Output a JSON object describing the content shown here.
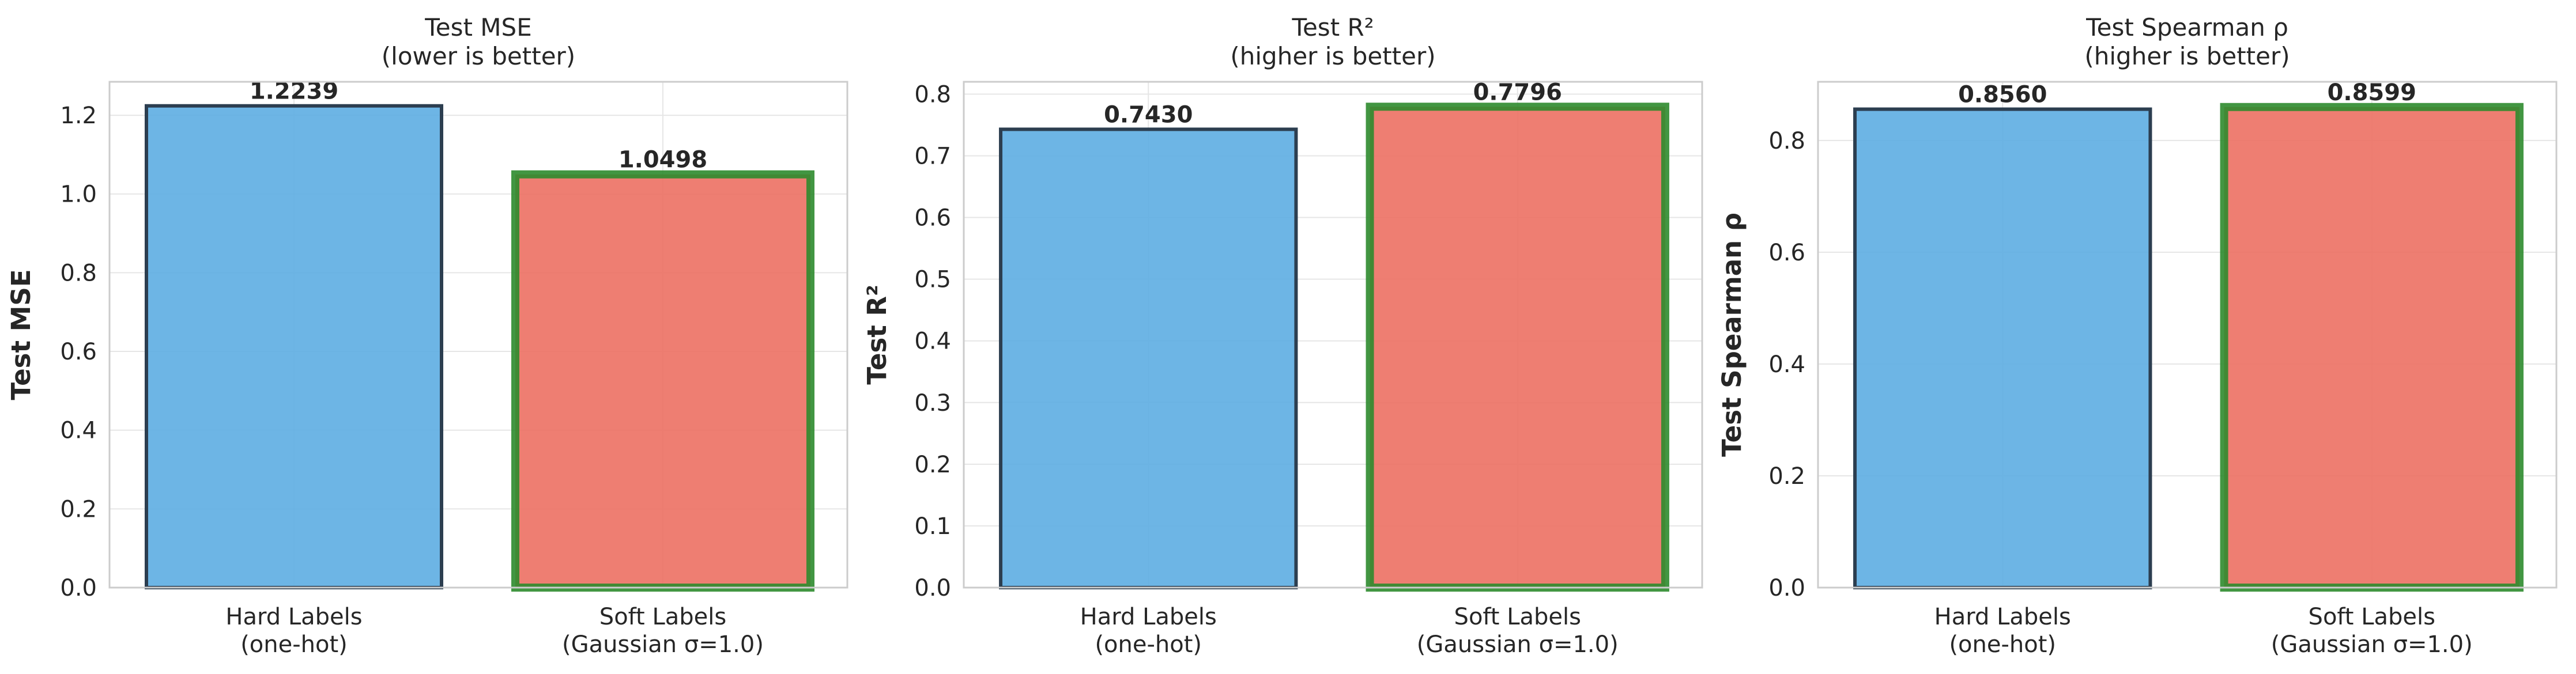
{
  "chart_data": [
    {
      "type": "bar",
      "title": [
        "Test MSE",
        "(lower is better)"
      ],
      "ylabel": "Test MSE",
      "categories": [
        [
          "Hard Labels",
          "(one-hot)"
        ],
        [
          "Soft Labels",
          "(Gaussian σ=1.0)"
        ]
      ],
      "values": [
        1.2239,
        1.0498
      ],
      "value_labels": [
        "1.2239",
        "1.0498"
      ],
      "ylim": [
        0,
        1.285
      ],
      "yticks": [
        0.0,
        0.2,
        0.4,
        0.6,
        0.8,
        1.0,
        1.2
      ],
      "ytick_labels": [
        "0.0",
        "0.2",
        "0.4",
        "0.6",
        "0.8",
        "1.0",
        "1.2"
      ],
      "best_index": 1,
      "grid": true
    },
    {
      "type": "bar",
      "title": [
        "Test R²",
        "(higher is better)"
      ],
      "ylabel": "Test R²",
      "categories": [
        [
          "Hard Labels",
          "(one-hot)"
        ],
        [
          "Soft Labels",
          "(Gaussian σ=1.0)"
        ]
      ],
      "values": [
        0.743,
        0.7796
      ],
      "value_labels": [
        "0.7430",
        "0.7796"
      ],
      "ylim": [
        0,
        0.82
      ],
      "yticks": [
        0.0,
        0.1,
        0.2,
        0.3,
        0.4,
        0.5,
        0.6,
        0.7,
        0.8
      ],
      "ytick_labels": [
        "0.0",
        "0.1",
        "0.2",
        "0.3",
        "0.4",
        "0.5",
        "0.6",
        "0.7",
        "0.8"
      ],
      "best_index": 1,
      "grid": true
    },
    {
      "type": "bar",
      "title": [
        "Test Spearman ρ",
        "(higher is better)"
      ],
      "ylabel": "Test Spearman ρ",
      "categories": [
        [
          "Hard Labels",
          "(one-hot)"
        ],
        [
          "Soft Labels",
          "(Gaussian σ=1.0)"
        ]
      ],
      "values": [
        0.856,
        0.8599
      ],
      "value_labels": [
        "0.8560",
        "0.8599"
      ],
      "ylim": [
        0,
        0.905
      ],
      "yticks": [
        0.0,
        0.2,
        0.4,
        0.6,
        0.8
      ],
      "ytick_labels": [
        "0.0",
        "0.2",
        "0.4",
        "0.6",
        "0.8"
      ],
      "best_index": 1,
      "grid": true
    }
  ],
  "colors": {
    "hard_bar": "#5dade2",
    "soft_bar": "#ec7063",
    "bar_edge": "#2c3e50",
    "best_edge": "#2e8b2e"
  }
}
